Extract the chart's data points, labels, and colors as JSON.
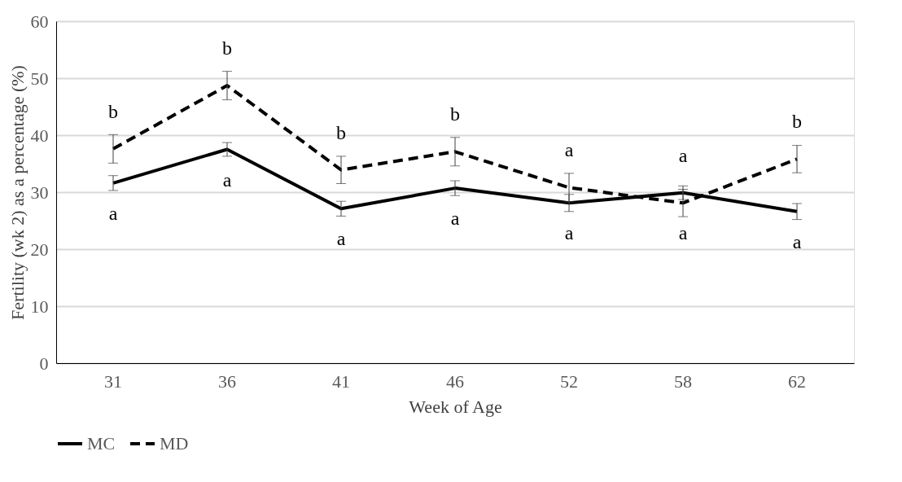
{
  "chart_data": {
    "type": "line",
    "xlabel": "Week of Age",
    "ylabel": "Fertility (wk 2) as a percentage (%)",
    "categories": [
      "31",
      "36",
      "41",
      "46",
      "52",
      "58",
      "62"
    ],
    "series": [
      {
        "name": "MC",
        "color": "#000000",
        "line_style": "solid",
        "values": [
          31.6,
          37.5,
          27.1,
          30.7,
          28.1,
          29.9,
          26.6
        ],
        "errors": [
          1.3,
          1.2,
          1.3,
          1.3,
          1.5,
          1.2,
          1.4
        ]
      },
      {
        "name": "MD",
        "color": "#000000",
        "line_style": "dashed",
        "values": [
          37.6,
          48.7,
          33.9,
          37.1,
          30.8,
          28.1,
          35.8
        ],
        "errors": [
          2.5,
          2.5,
          2.4,
          2.5,
          2.5,
          2.4,
          2.4
        ]
      }
    ],
    "ylim": [
      0,
      60
    ],
    "yticks": [
      0,
      10,
      20,
      30,
      40,
      50,
      60
    ],
    "grid": "y",
    "legend": "bottom",
    "marker": "none",
    "annotations": [
      {
        "text": "b",
        "x": "31",
        "y": 37.6
      },
      {
        "text": "a",
        "x": "31",
        "y": 31.6
      },
      {
        "text": "b",
        "x": "36",
        "y": 48.7
      },
      {
        "text": "a",
        "x": "36",
        "y": 37.5
      },
      {
        "text": "b",
        "x": "41",
        "y": 33.9
      },
      {
        "text": "a",
        "x": "41",
        "y": 27.1
      },
      {
        "text": "b",
        "x": "46",
        "y": 37.1
      },
      {
        "text": "a",
        "x": "46",
        "y": 30.7
      },
      {
        "text": "a",
        "x": "52",
        "y": 30.8
      },
      {
        "text": "a",
        "x": "52",
        "y": 28.1
      },
      {
        "text": "a",
        "x": "58",
        "y": 29.9
      },
      {
        "text": "a",
        "x": "58",
        "y": 28.1
      },
      {
        "text": "b",
        "x": "62",
        "y": 35.8
      },
      {
        "text": "a",
        "x": "62",
        "y": 26.6
      }
    ]
  }
}
